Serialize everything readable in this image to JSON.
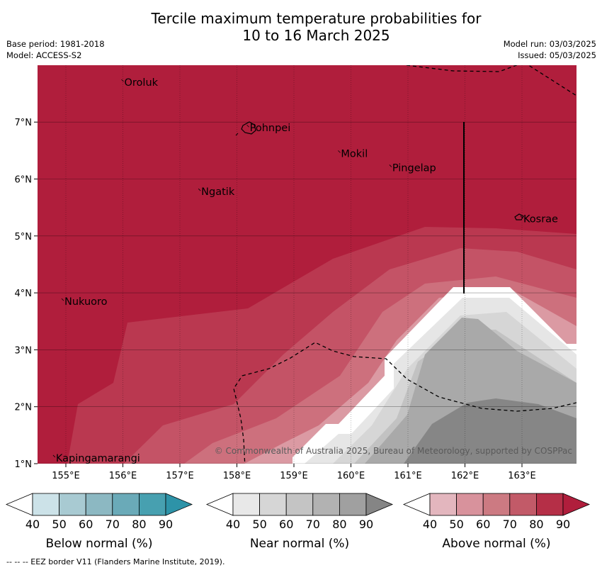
{
  "title_line1": "Tercile maximum temperature probabilities for",
  "title_line2": "10 to 16 March 2025",
  "meta_left": [
    "Base period: 1981-2018",
    "Model: ACCESS-S2"
  ],
  "meta_right": [
    "Model run: 03/03/2025",
    "Issued: 05/03/2025"
  ],
  "places": [
    {
      "name": "Oroluk",
      "lon": 156.0,
      "lat": 7.7
    },
    {
      "name": "Pohnpei",
      "lon": 158.2,
      "lat": 6.9
    },
    {
      "name": "Mokil",
      "lon": 159.8,
      "lat": 6.45
    },
    {
      "name": "Pingelap",
      "lon": 160.7,
      "lat": 6.2
    },
    {
      "name": "Ngatik",
      "lon": 157.35,
      "lat": 5.78
    },
    {
      "name": "Kosrae",
      "lon": 163.0,
      "lat": 5.3
    },
    {
      "name": "Nukuoro",
      "lon": 154.95,
      "lat": 3.85
    },
    {
      "name": "Kapingamarangi",
      "lon": 154.8,
      "lat": 1.1
    }
  ],
  "x_ticks": [
    "155°E",
    "156°E",
    "157°E",
    "158°E",
    "159°E",
    "160°E",
    "161°E",
    "162°E",
    "163°E"
  ],
  "y_ticks": [
    "1°N",
    "2°N",
    "3°N",
    "4°N",
    "5°N",
    "6°N",
    "7°N"
  ],
  "copyright": "© Commonwealth of Australia 2025, Bureau of Meteorology, supported by COSPPac",
  "colorbars": [
    {
      "title": "Below normal (%)",
      "ticks": [
        "40",
        "50",
        "60",
        "70",
        "80",
        "90"
      ],
      "colors": [
        "#ffffff",
        "#cce2e8",
        "#a8cad2",
        "#8cb8c2",
        "#6aaab8",
        "#47a0b0",
        "#2d93a8"
      ]
    },
    {
      "title": "Near normal (%)",
      "ticks": [
        "40",
        "50",
        "60",
        "70",
        "80",
        "90"
      ],
      "colors": [
        "#ffffff",
        "#e8e8e8",
        "#d6d6d6",
        "#c4c4c4",
        "#b2b2b2",
        "#a0a0a0",
        "#858585"
      ]
    },
    {
      "title": "Above normal (%)",
      "ticks": [
        "40",
        "50",
        "60",
        "70",
        "80",
        "90"
      ],
      "colors": [
        "#ffffff",
        "#e3b6be",
        "#d8929c",
        "#cc7a82",
        "#c25a68",
        "#b52f47",
        "#b01e3c"
      ]
    }
  ],
  "footnote": "--  --  -- EEZ border V11 (Flanders Marine Institute, 2019).",
  "colors": {
    "above_deep": "#b01e3c",
    "near_dark": "#858585"
  }
}
